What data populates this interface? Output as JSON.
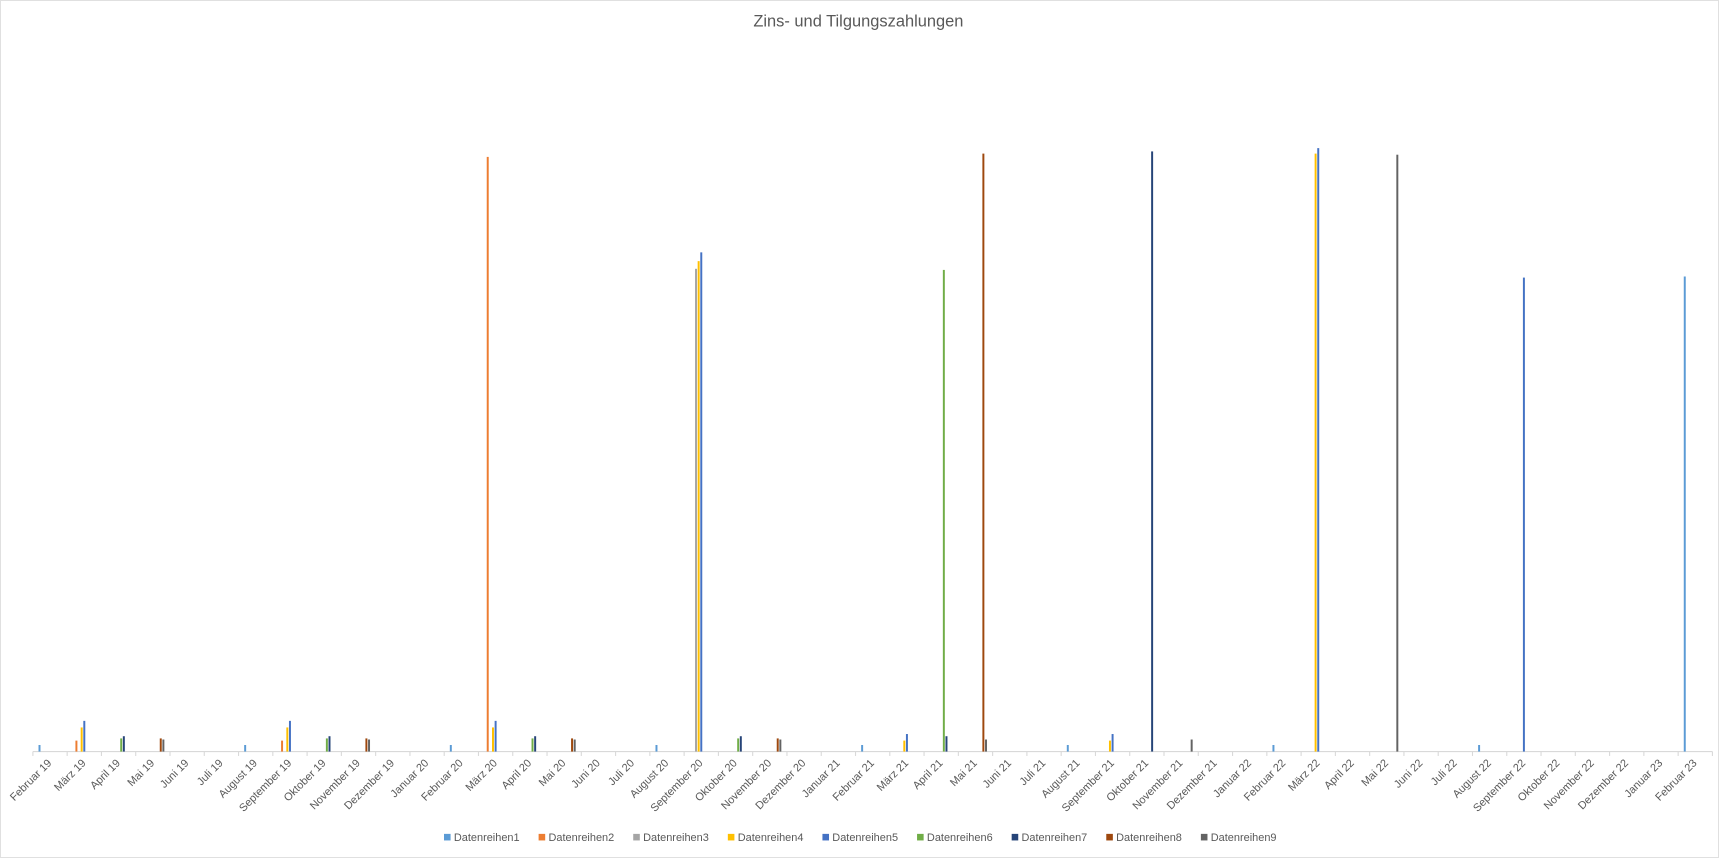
{
  "chart_data": {
    "type": "bar",
    "title": "Zins- und Tilgungszahlungen",
    "categories": [
      "Februar 19",
      "März 19",
      "April 19",
      "Mai 19",
      "Juni 19",
      "Juli 19",
      "August 19",
      "September 19",
      "Oktober 19",
      "November 19",
      "Dezember 19",
      "Januar 20",
      "Februar 20",
      "März 20",
      "April 20",
      "Mai 20",
      "Juni 20",
      "Juli 20",
      "August 20",
      "September 20",
      "Oktober 20",
      "November 20",
      "Dezember 20",
      "Januar 21",
      "Februar 21",
      "März 21",
      "April 21",
      "Mai 21",
      "Juni 21",
      "Juli 21",
      "August 21",
      "September 21",
      "Oktober 21",
      "November 21",
      "Dezember 21",
      "Januar 22",
      "Februar 22",
      "März 22",
      "April 22",
      "Mai 22",
      "Juni 22",
      "Juli 22",
      "August 22",
      "September 22",
      "Oktober 22",
      "November 22",
      "Dezember 22",
      "Januar 23",
      "Februar 23"
    ],
    "series": [
      {
        "name": "Datenreihen1",
        "color": "#5b9bd5",
        "values": [
          6,
          0,
          0,
          0,
          0,
          0,
          6,
          0,
          0,
          0,
          0,
          0,
          6,
          0,
          0,
          0,
          0,
          0,
          6,
          0,
          0,
          0,
          0,
          0,
          6,
          0,
          0,
          0,
          0,
          0,
          6,
          0,
          0,
          0,
          0,
          0,
          6,
          0,
          0,
          0,
          0,
          0,
          6,
          0,
          0,
          0,
          0,
          0,
          433
        ]
      },
      {
        "name": "Datenreihen2",
        "color": "#ed7d31",
        "values": [
          0,
          10,
          0,
          0,
          0,
          0,
          0,
          10,
          0,
          0,
          0,
          0,
          0,
          542,
          0,
          0,
          0,
          0,
          0,
          0,
          0,
          0,
          0,
          0,
          0,
          0,
          0,
          0,
          0,
          0,
          0,
          0,
          0,
          0,
          0,
          0,
          0,
          0,
          0,
          0,
          0,
          0,
          0,
          0,
          0,
          0,
          0,
          0,
          0
        ]
      },
      {
        "name": "Datenreihen3",
        "color": "#a5a5a5",
        "values": [
          0,
          0,
          0,
          0,
          0,
          0,
          0,
          0,
          0,
          0,
          0,
          0,
          0,
          0,
          0,
          0,
          0,
          0,
          0,
          440,
          0,
          0,
          0,
          0,
          0,
          0,
          0,
          0,
          0,
          0,
          0,
          0,
          0,
          0,
          0,
          0,
          0,
          0,
          0,
          0,
          0,
          0,
          0,
          0,
          0,
          0,
          0,
          0,
          0
        ]
      },
      {
        "name": "Datenreihen4",
        "color": "#ffc000",
        "values": [
          0,
          22,
          0,
          0,
          0,
          0,
          0,
          22,
          0,
          0,
          0,
          0,
          0,
          22,
          0,
          0,
          0,
          0,
          0,
          447,
          0,
          0,
          0,
          0,
          0,
          10,
          0,
          0,
          0,
          0,
          0,
          10,
          0,
          0,
          0,
          0,
          0,
          545,
          0,
          0,
          0,
          0,
          0,
          0,
          0,
          0,
          0,
          0,
          0
        ]
      },
      {
        "name": "Datenreihen5",
        "color": "#4472c4",
        "values": [
          0,
          28,
          0,
          0,
          0,
          0,
          0,
          28,
          0,
          0,
          0,
          0,
          0,
          28,
          0,
          0,
          0,
          0,
          0,
          455,
          0,
          0,
          0,
          0,
          0,
          16,
          0,
          0,
          0,
          0,
          0,
          16,
          0,
          0,
          0,
          0,
          0,
          550,
          0,
          0,
          0,
          0,
          0,
          432,
          0,
          0,
          0,
          0,
          0
        ]
      },
      {
        "name": "Datenreihen6",
        "color": "#70ad47",
        "values": [
          0,
          0,
          12,
          0,
          0,
          0,
          0,
          0,
          12,
          0,
          0,
          0,
          0,
          0,
          12,
          0,
          0,
          0,
          0,
          0,
          12,
          0,
          0,
          0,
          0,
          0,
          439,
          0,
          0,
          0,
          0,
          0,
          0,
          0,
          0,
          0,
          0,
          0,
          0,
          0,
          0,
          0,
          0,
          0,
          0,
          0,
          0,
          0,
          0
        ]
      },
      {
        "name": "Datenreihen7",
        "color": "#264478",
        "values": [
          0,
          0,
          14,
          0,
          0,
          0,
          0,
          0,
          14,
          0,
          0,
          0,
          0,
          0,
          14,
          0,
          0,
          0,
          0,
          0,
          14,
          0,
          0,
          0,
          0,
          0,
          14,
          0,
          0,
          0,
          0,
          0,
          547,
          0,
          0,
          0,
          0,
          0,
          0,
          0,
          0,
          0,
          0,
          0,
          0,
          0,
          0,
          0,
          0
        ]
      },
      {
        "name": "Datenreihen8",
        "color": "#9e480e",
        "values": [
          0,
          0,
          0,
          12,
          0,
          0,
          0,
          0,
          0,
          12,
          0,
          0,
          0,
          0,
          0,
          12,
          0,
          0,
          0,
          0,
          0,
          12,
          0,
          0,
          0,
          0,
          0,
          545,
          0,
          0,
          0,
          0,
          0,
          0,
          0,
          0,
          0,
          0,
          0,
          0,
          0,
          0,
          0,
          0,
          0,
          0,
          0,
          0,
          0
        ]
      },
      {
        "name": "Datenreihen9",
        "color": "#636363",
        "values": [
          0,
          0,
          0,
          11,
          0,
          0,
          0,
          0,
          0,
          11,
          0,
          0,
          0,
          0,
          0,
          11,
          0,
          0,
          0,
          0,
          0,
          11,
          0,
          0,
          0,
          0,
          0,
          11,
          0,
          0,
          0,
          0,
          0,
          11,
          0,
          0,
          0,
          0,
          0,
          544,
          0,
          0,
          0,
          0,
          0,
          0,
          0,
          0,
          0
        ]
      }
    ],
    "ylim": [
      0,
      625
    ],
    "legend": "bottom"
  }
}
